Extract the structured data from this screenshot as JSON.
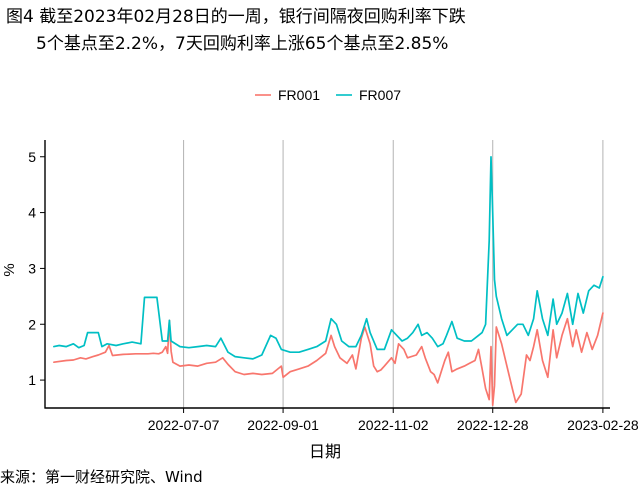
{
  "title_line1": "图4  截至2023年02月28日的一周，银行间隔夜回购利率下跌",
  "title_line2": "5个基点至2.2%，7天回购利率上涨65个基点至2.85%",
  "source": "来源：第一财经研究院、Wind",
  "chart_data": {
    "type": "line",
    "xlabel": "日期",
    "ylabel": "%",
    "ylim": [
      0.5,
      5.3
    ],
    "yticks": [
      1,
      2,
      3,
      4,
      5
    ],
    "xlim": [
      "2022-04-20",
      "2023-03-04"
    ],
    "xticks": [
      "2022-07-07",
      "2022-09-01",
      "2022-11-02",
      "2022-12-28",
      "2023-02-28"
    ],
    "grid": "vertical-major",
    "legend_position": "top",
    "colors": {
      "FR001": "#F8766D",
      "FR007": "#00BFC4"
    },
    "series": [
      {
        "name": "FR001",
        "points": [
          [
            "2022-04-25",
            1.32
          ],
          [
            "2022-05-02",
            1.35
          ],
          [
            "2022-05-06",
            1.36
          ],
          [
            "2022-05-10",
            1.4
          ],
          [
            "2022-05-13",
            1.38
          ],
          [
            "2022-05-17",
            1.42
          ],
          [
            "2022-05-20",
            1.45
          ],
          [
            "2022-05-24",
            1.5
          ],
          [
            "2022-05-26",
            1.62
          ],
          [
            "2022-05-28",
            1.44
          ],
          [
            "2022-06-03",
            1.46
          ],
          [
            "2022-06-10",
            1.47
          ],
          [
            "2022-06-17",
            1.47
          ],
          [
            "2022-06-20",
            1.48
          ],
          [
            "2022-06-23",
            1.47
          ],
          [
            "2022-06-25",
            1.5
          ],
          [
            "2022-06-27",
            1.6
          ],
          [
            "2022-06-28",
            1.48
          ],
          [
            "2022-06-29",
            2.07
          ],
          [
            "2022-06-30",
            1.52
          ],
          [
            "2022-07-01",
            1.32
          ],
          [
            "2022-07-05",
            1.25
          ],
          [
            "2022-07-10",
            1.27
          ],
          [
            "2022-07-15",
            1.25
          ],
          [
            "2022-07-20",
            1.3
          ],
          [
            "2022-07-25",
            1.32
          ],
          [
            "2022-07-29",
            1.4
          ],
          [
            "2022-08-01",
            1.28
          ],
          [
            "2022-08-05",
            1.15
          ],
          [
            "2022-08-10",
            1.1
          ],
          [
            "2022-08-15",
            1.12
          ],
          [
            "2022-08-20",
            1.1
          ],
          [
            "2022-08-26",
            1.12
          ],
          [
            "2022-08-31",
            1.25
          ],
          [
            "2022-09-01",
            1.05
          ],
          [
            "2022-09-05",
            1.15
          ],
          [
            "2022-09-10",
            1.2
          ],
          [
            "2022-09-15",
            1.25
          ],
          [
            "2022-09-20",
            1.35
          ],
          [
            "2022-09-25",
            1.48
          ],
          [
            "2022-09-28",
            1.8
          ],
          [
            "2022-09-30",
            1.6
          ],
          [
            "2022-10-03",
            1.4
          ],
          [
            "2022-10-07",
            1.3
          ],
          [
            "2022-10-10",
            1.45
          ],
          [
            "2022-10-12",
            1.2
          ],
          [
            "2022-10-15",
            1.75
          ],
          [
            "2022-10-17",
            1.95
          ],
          [
            "2022-10-20",
            1.65
          ],
          [
            "2022-10-22",
            1.25
          ],
          [
            "2022-10-24",
            1.15
          ],
          [
            "2022-10-26",
            1.18
          ],
          [
            "2022-10-28",
            1.25
          ],
          [
            "2022-11-01",
            1.4
          ],
          [
            "2022-11-03",
            1.3
          ],
          [
            "2022-11-05",
            1.65
          ],
          [
            "2022-11-08",
            1.55
          ],
          [
            "2022-11-10",
            1.4
          ],
          [
            "2022-11-15",
            1.45
          ],
          [
            "2022-11-18",
            1.6
          ],
          [
            "2022-11-20",
            1.4
          ],
          [
            "2022-11-23",
            1.15
          ],
          [
            "2022-11-25",
            1.1
          ],
          [
            "2022-11-27",
            0.95
          ],
          [
            "2022-11-29",
            1.15
          ],
          [
            "2022-12-01",
            1.35
          ],
          [
            "2022-12-03",
            1.5
          ],
          [
            "2022-12-05",
            1.15
          ],
          [
            "2022-12-08",
            1.2
          ],
          [
            "2022-12-12",
            1.25
          ],
          [
            "2022-12-15",
            1.3
          ],
          [
            "2022-12-18",
            1.35
          ],
          [
            "2022-12-20",
            1.55
          ],
          [
            "2022-12-22",
            1.2
          ],
          [
            "2022-12-24",
            0.85
          ],
          [
            "2022-12-26",
            0.65
          ],
          [
            "2022-12-27",
            1.6
          ],
          [
            "2022-12-28",
            0.55
          ],
          [
            "2022-12-29",
            0.9
          ],
          [
            "2022-12-30",
            1.95
          ],
          [
            "2023-01-02",
            1.65
          ],
          [
            "2023-01-05",
            1.25
          ],
          [
            "2023-01-08",
            0.85
          ],
          [
            "2023-01-10",
            0.6
          ],
          [
            "2023-01-13",
            0.75
          ],
          [
            "2023-01-16",
            1.45
          ],
          [
            "2023-01-18",
            1.35
          ],
          [
            "2023-01-20",
            1.6
          ],
          [
            "2023-01-22",
            1.9
          ],
          [
            "2023-01-25",
            1.35
          ],
          [
            "2023-01-28",
            1.05
          ],
          [
            "2023-01-31",
            1.9
          ],
          [
            "2023-02-02",
            1.4
          ],
          [
            "2023-02-05",
            1.8
          ],
          [
            "2023-02-08",
            2.1
          ],
          [
            "2023-02-11",
            1.6
          ],
          [
            "2023-02-13",
            1.9
          ],
          [
            "2023-02-16",
            1.5
          ],
          [
            "2023-02-19",
            1.85
          ],
          [
            "2023-02-22",
            1.55
          ],
          [
            "2023-02-25",
            1.8
          ],
          [
            "2023-02-28",
            2.2
          ]
        ]
      },
      {
        "name": "FR007",
        "points": [
          [
            "2022-04-25",
            1.6
          ],
          [
            "2022-04-28",
            1.62
          ],
          [
            "2022-05-02",
            1.6
          ],
          [
            "2022-05-06",
            1.65
          ],
          [
            "2022-05-09",
            1.58
          ],
          [
            "2022-05-12",
            1.62
          ],
          [
            "2022-05-14",
            1.85
          ],
          [
            "2022-05-20",
            1.85
          ],
          [
            "2022-05-22",
            1.6
          ],
          [
            "2022-05-25",
            1.65
          ],
          [
            "2022-05-30",
            1.62
          ],
          [
            "2022-06-03",
            1.65
          ],
          [
            "2022-06-08",
            1.68
          ],
          [
            "2022-06-13",
            1.65
          ],
          [
            "2022-06-15",
            2.48
          ],
          [
            "2022-06-22",
            2.48
          ],
          [
            "2022-06-25",
            1.7
          ],
          [
            "2022-06-28",
            1.7
          ],
          [
            "2022-06-29",
            2.07
          ],
          [
            "2022-06-30",
            1.7
          ],
          [
            "2022-07-05",
            1.6
          ],
          [
            "2022-07-10",
            1.58
          ],
          [
            "2022-07-15",
            1.6
          ],
          [
            "2022-07-20",
            1.62
          ],
          [
            "2022-07-25",
            1.6
          ],
          [
            "2022-07-28",
            1.75
          ],
          [
            "2022-08-01",
            1.5
          ],
          [
            "2022-08-05",
            1.42
          ],
          [
            "2022-08-10",
            1.4
          ],
          [
            "2022-08-15",
            1.38
          ],
          [
            "2022-08-20",
            1.45
          ],
          [
            "2022-08-25",
            1.8
          ],
          [
            "2022-08-28",
            1.75
          ],
          [
            "2022-08-31",
            1.55
          ],
          [
            "2022-09-05",
            1.5
          ],
          [
            "2022-09-10",
            1.5
          ],
          [
            "2022-09-15",
            1.55
          ],
          [
            "2022-09-20",
            1.6
          ],
          [
            "2022-09-25",
            1.7
          ],
          [
            "2022-09-28",
            2.1
          ],
          [
            "2022-10-01",
            2.0
          ],
          [
            "2022-10-04",
            1.7
          ],
          [
            "2022-10-08",
            1.6
          ],
          [
            "2022-10-12",
            1.6
          ],
          [
            "2022-10-15",
            1.8
          ],
          [
            "2022-10-18",
            2.1
          ],
          [
            "2022-10-20",
            1.85
          ],
          [
            "2022-10-24",
            1.55
          ],
          [
            "2022-10-28",
            1.55
          ],
          [
            "2022-11-01",
            1.9
          ],
          [
            "2022-11-04",
            1.8
          ],
          [
            "2022-11-07",
            1.7
          ],
          [
            "2022-11-10",
            1.75
          ],
          [
            "2022-11-13",
            1.85
          ],
          [
            "2022-11-16",
            2.0
          ],
          [
            "2022-11-18",
            1.8
          ],
          [
            "2022-11-21",
            1.85
          ],
          [
            "2022-11-24",
            1.75
          ],
          [
            "2022-11-27",
            1.6
          ],
          [
            "2022-11-30",
            1.65
          ],
          [
            "2022-12-02",
            1.8
          ],
          [
            "2022-12-05",
            2.05
          ],
          [
            "2022-12-08",
            1.75
          ],
          [
            "2022-12-12",
            1.7
          ],
          [
            "2022-12-16",
            1.7
          ],
          [
            "2022-12-20",
            1.8
          ],
          [
            "2022-12-22",
            1.85
          ],
          [
            "2022-12-24",
            2.0
          ],
          [
            "2022-12-26",
            3.5
          ],
          [
            "2022-12-27",
            5.0
          ],
          [
            "2022-12-28",
            4.0
          ],
          [
            "2022-12-29",
            2.8
          ],
          [
            "2022-12-30",
            2.5
          ],
          [
            "2023-01-02",
            2.1
          ],
          [
            "2023-01-05",
            1.8
          ],
          [
            "2023-01-08",
            1.9
          ],
          [
            "2023-01-11",
            2.0
          ],
          [
            "2023-01-14",
            2.0
          ],
          [
            "2023-01-17",
            1.8
          ],
          [
            "2023-01-20",
            2.1
          ],
          [
            "2023-01-22",
            2.6
          ],
          [
            "2023-01-25",
            2.1
          ],
          [
            "2023-01-28",
            1.8
          ],
          [
            "2023-01-31",
            2.45
          ],
          [
            "2023-02-02",
            2.0
          ],
          [
            "2023-02-05",
            2.2
          ],
          [
            "2023-02-08",
            2.55
          ],
          [
            "2023-02-11",
            2.0
          ],
          [
            "2023-02-14",
            2.55
          ],
          [
            "2023-02-17",
            2.2
          ],
          [
            "2023-02-20",
            2.6
          ],
          [
            "2023-02-23",
            2.7
          ],
          [
            "2023-02-26",
            2.65
          ],
          [
            "2023-02-28",
            2.85
          ]
        ]
      }
    ]
  }
}
